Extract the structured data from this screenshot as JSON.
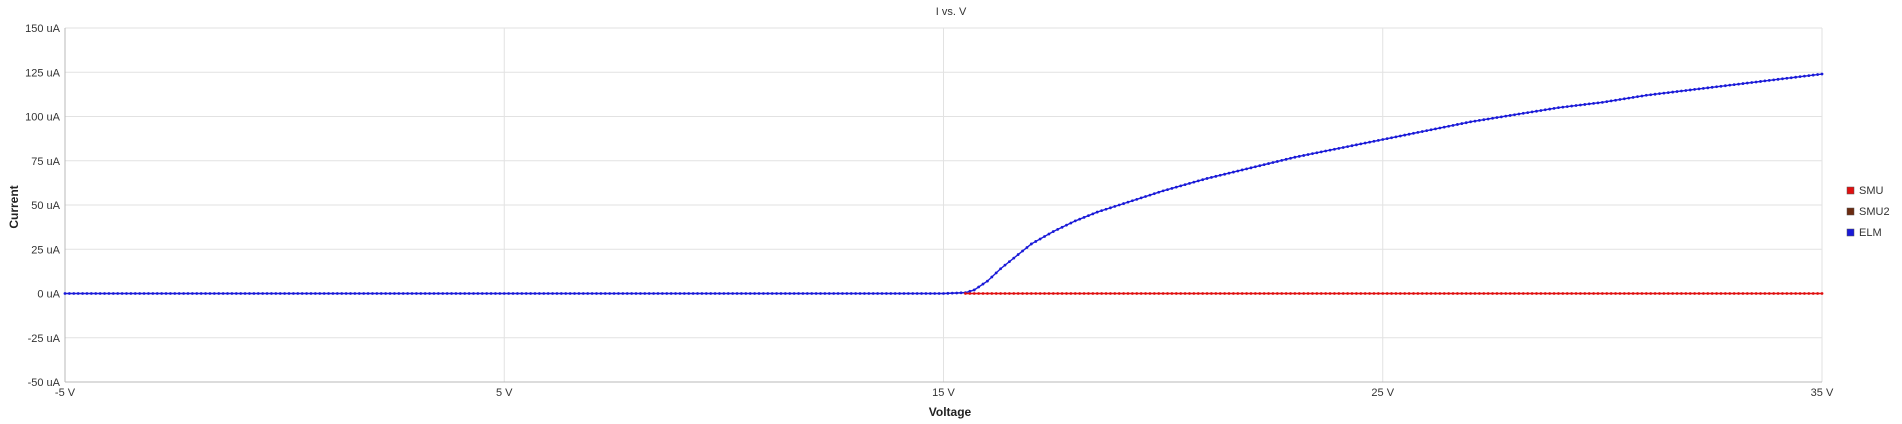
{
  "chart_data": {
    "type": "line",
    "title": "I vs. V",
    "xlabel": "Voltage",
    "ylabel": "Current",
    "xlim": [
      -5,
      35
    ],
    "ylim": [
      -50,
      150
    ],
    "x_ticks": [
      -5,
      5,
      15,
      25,
      35
    ],
    "x_tick_labels": [
      "-5 V",
      "5 V",
      "15 V",
      "25 V",
      "35 V"
    ],
    "y_ticks": [
      150,
      125,
      100,
      75,
      50,
      25,
      0,
      -25,
      -50
    ],
    "y_tick_labels": [
      "150 uA",
      "125 uA",
      "100 uA",
      "75 uA",
      "50 uA",
      "25 uA",
      "0 uA",
      "-25 uA",
      "-50 uA"
    ],
    "grid": true,
    "legend_position": "right",
    "series": [
      {
        "name": "SMU",
        "color": "#e01010",
        "x": [
          15.5,
          35
        ],
        "y": [
          0,
          0
        ]
      },
      {
        "name": "SMU2",
        "color": "#6b2b10",
        "x": [],
        "y": []
      },
      {
        "name": "ELM",
        "color": "#1a1ad8",
        "x": [
          -5,
          0,
          5,
          10,
          15,
          15.5,
          15.7,
          16,
          16.3,
          16.7,
          17,
          17.5,
          18,
          18.5,
          19,
          19.5,
          20,
          21,
          22,
          23,
          24,
          25,
          26,
          27,
          28,
          29,
          30,
          31,
          32,
          33,
          34,
          35
        ],
        "y": [
          0,
          0,
          0,
          0,
          0,
          0.5,
          2,
          7,
          14,
          22,
          28,
          35,
          41,
          46,
          50,
          54,
          58,
          65,
          71,
          77,
          82,
          87,
          92,
          97,
          101,
          105,
          108,
          112,
          115,
          118,
          121,
          124
        ]
      }
    ]
  }
}
